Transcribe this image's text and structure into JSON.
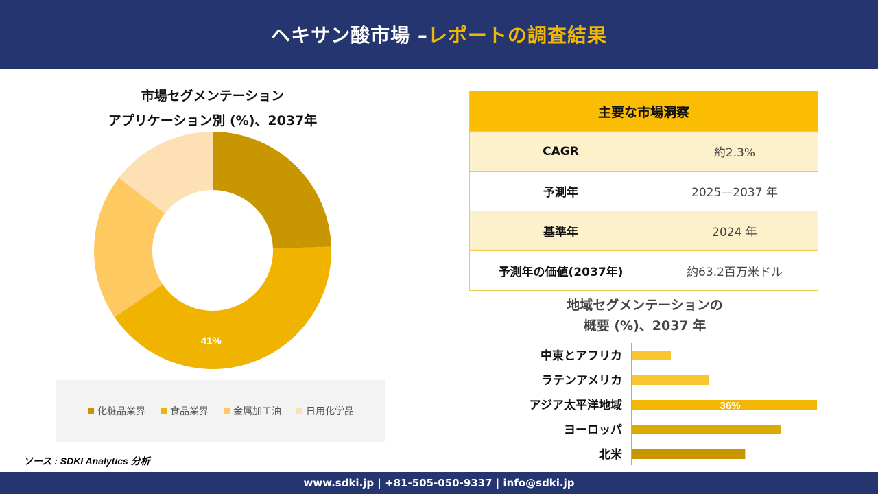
{
  "header": {
    "title_main": "ヘキサン酸市場 –",
    "title_accent": "レポートの調査結果"
  },
  "donut": {
    "title_line1": "市場セグメンテーション",
    "title_line2": "アプリケーション別 (%)、2037年"
  },
  "legend": [
    {
      "label": "化粧品業界",
      "color": "#c89600"
    },
    {
      "label": "食品業界",
      "color": "#f0b400"
    },
    {
      "label": "金属加工油",
      "color": "#fdc960"
    },
    {
      "label": "日用化学品",
      "color": "#fde0b4"
    }
  ],
  "table": {
    "header": "主要な市場洞察",
    "rows": [
      {
        "key": "CAGR",
        "value": "約2.3%"
      },
      {
        "key": "予測年",
        "value": "2025—2037 年"
      },
      {
        "key": "基準年",
        "value": "2024 年"
      },
      {
        "key": "予測年の価値(2037年)",
        "value": "約63.2百万米ドル"
      }
    ]
  },
  "bar_section": {
    "title_line1": "地域セグメンテーションの",
    "title_line2": "概要 (%)、2037 年"
  },
  "source": "ソース : SDKI Analytics 分析",
  "footer": "www.sdki.jp | +81-505-050-9337 | info@sdki.jp",
  "chart_data": [
    {
      "type": "pie",
      "categories": [
        "化粧品業界",
        "食品業界",
        "金属加工油",
        "日用化学品"
      ],
      "values": [
        24.5,
        41,
        20,
        14.5
      ],
      "colors": [
        "#c89600",
        "#f0b400",
        "#fdc960",
        "#fde0b4"
      ],
      "data_labels": [
        "",
        "41%",
        "",
        ""
      ]
    },
    {
      "type": "bar",
      "orientation": "horizontal",
      "categories": [
        "中東とアフリカ",
        "ラテンアメリカ",
        "アジア太平洋地域",
        "ヨーロッパ",
        "北米"
      ],
      "values": [
        7.5,
        15,
        36,
        29,
        22
      ],
      "colors": [
        "#fbc531",
        "#fbc531",
        "#f2b705",
        "#ddaa05",
        "#c89600"
      ],
      "data_labels": [
        "",
        "",
        "36%",
        "",
        ""
      ],
      "xlim": [
        0,
        36
      ]
    }
  ]
}
